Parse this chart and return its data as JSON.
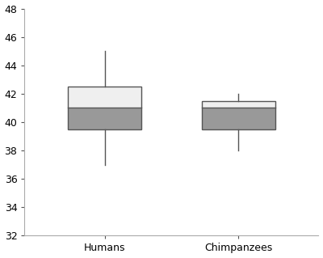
{
  "categories": [
    "Humans",
    "Chimpanzees"
  ],
  "boxes": [
    {
      "whislo": 37.0,
      "q1": 39.5,
      "med": 41.0,
      "q3": 42.5,
      "whishi": 45.0
    },
    {
      "whislo": 38.0,
      "q1": 39.5,
      "med": 41.0,
      "q3": 41.5,
      "whishi": 42.0
    }
  ],
  "positions": [
    1,
    2
  ],
  "xlim": [
    0.4,
    2.6
  ],
  "ylim": [
    32,
    48
  ],
  "yticks": [
    32,
    34,
    36,
    38,
    40,
    42,
    44,
    46,
    48
  ],
  "box_color_lower": "#999999",
  "box_color_upper": "#efefef",
  "box_edge_color": "#555555",
  "whisker_color": "#555555",
  "box_width": 0.55,
  "background_color": "#ffffff",
  "linewidth": 1.0,
  "spine_color": "#aaaaaa",
  "tick_color": "#555555",
  "label_fontsize": 9
}
